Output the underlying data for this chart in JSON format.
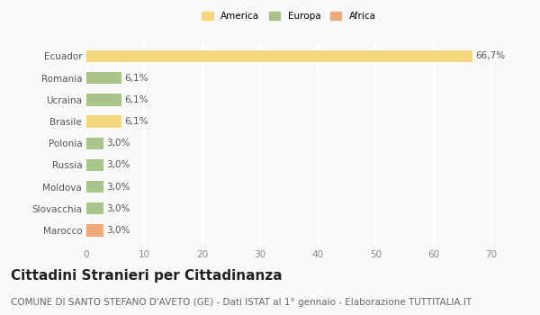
{
  "categories": [
    "Marocco",
    "Slovacchia",
    "Moldova",
    "Russia",
    "Polonia",
    "Brasile",
    "Ucraina",
    "Romania",
    "Ecuador"
  ],
  "values": [
    3.0,
    3.0,
    3.0,
    3.0,
    3.0,
    6.1,
    6.1,
    6.1,
    66.7
  ],
  "colors": [
    "#f0aa78",
    "#a8c48a",
    "#a8c48a",
    "#a8c48a",
    "#a8c48a",
    "#f5d87e",
    "#a8c48a",
    "#a8c48a",
    "#f5d87e"
  ],
  "labels": [
    "3,0%",
    "3,0%",
    "3,0%",
    "3,0%",
    "3,0%",
    "6,1%",
    "6,1%",
    "6,1%",
    "66,7%"
  ],
  "legend": [
    {
      "label": "America",
      "color": "#f5d87e"
    },
    {
      "label": "Europa",
      "color": "#a8c48a"
    },
    {
      "label": "Africa",
      "color": "#f0aa78"
    }
  ],
  "title": "Cittadini Stranieri per Cittadinanza",
  "subtitle": "COMUNE DI SANTO STEFANO D'AVETO (GE) - Dati ISTAT al 1° gennaio - Elaborazione TUTTITALIA.IT",
  "xlim": [
    0,
    70
  ],
  "xticks": [
    0,
    10,
    20,
    30,
    40,
    50,
    60,
    70
  ],
  "background_color": "#f9f9f9",
  "plot_background": "#f9f9f9",
  "grid_color": "#ffffff",
  "title_fontsize": 11,
  "subtitle_fontsize": 7.5,
  "label_fontsize": 7.5,
  "tick_fontsize": 7.5,
  "bar_height": 0.55
}
